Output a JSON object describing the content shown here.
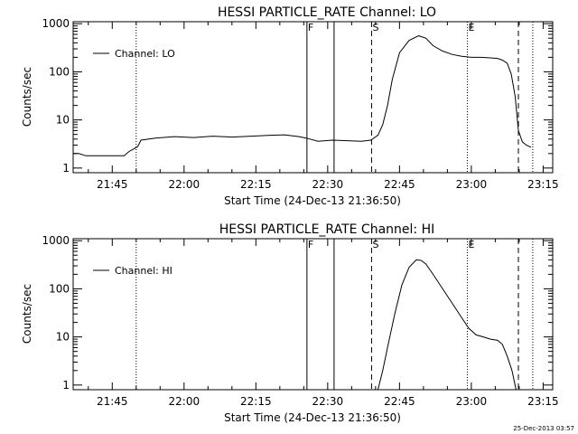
{
  "footer": {
    "timestamp": "25-Dec-2013 03:57"
  },
  "chart_data": [
    {
      "type": "line",
      "title": "HESSI PARTICLE_RATE Channel: LO",
      "xlabel": "Start Time (24-Dec-13 21:36:50)",
      "ylabel": "Counts/sec",
      "yscale": "log",
      "ylim": [
        0.8,
        1100
      ],
      "xlim": [
        "21:36:50",
        "23:17:00"
      ],
      "xticks": [
        "21:45",
        "22:00",
        "22:15",
        "22:30",
        "22:45",
        "23:00",
        "23:15"
      ],
      "yticks": [
        "1",
        "10",
        "100",
        "1000"
      ],
      "grid": false,
      "legend": {
        "position": "top-left",
        "entries": [
          "Channel: LO"
        ]
      },
      "markers": [
        {
          "label": "",
          "time": "21:50:00",
          "style": "dotted"
        },
        {
          "label": "F",
          "time": "22:25:40",
          "style": "solid"
        },
        {
          "label": "",
          "time": "22:31:20",
          "style": "solid"
        },
        {
          "label": "S",
          "time": "22:39:10",
          "style": "dashed"
        },
        {
          "label": "E",
          "time": "22:59:10",
          "style": "dotted"
        },
        {
          "label": "",
          "time": "23:09:50",
          "style": "dashed"
        },
        {
          "label": "",
          "time": "23:12:50",
          "style": "dotted"
        }
      ],
      "series": [
        {
          "name": "Channel: LO",
          "x": [
            "21:36:50",
            "21:38:00",
            "21:39:30",
            "21:40:30",
            "21:42:00",
            "21:43:30",
            "21:44:30",
            "21:46:00",
            "21:47:30",
            "21:48:30",
            "21:49:30",
            "21:50:20",
            "21:51:00",
            "21:54:00",
            "21:58:00",
            "22:02:00",
            "22:06:00",
            "22:10:00",
            "22:14:00",
            "22:18:00",
            "22:21:00",
            "22:24:00",
            "22:25:30",
            "22:28:00",
            "22:31:00",
            "22:34:00",
            "22:37:00",
            "22:39:00",
            "22:40:30",
            "22:41:30",
            "22:42:30",
            "22:43:30",
            "22:45:00",
            "22:47:00",
            "22:49:00",
            "22:50:30",
            "22:52:00",
            "22:54:00",
            "22:56:00",
            "22:58:00",
            "23:00:00",
            "23:02:00",
            "23:04:00",
            "23:05:30",
            "23:06:30",
            "23:07:30",
            "23:08:20",
            "23:09:10",
            "23:09:50",
            "23:10:40",
            "23:11:30",
            "23:12:30"
          ],
          "y": [
            2.0,
            2.0,
            1.8,
            1.8,
            1.8,
            1.8,
            1.8,
            1.8,
            1.8,
            2.2,
            2.5,
            2.8,
            3.8,
            4.2,
            4.5,
            4.3,
            4.6,
            4.4,
            4.6,
            4.8,
            4.9,
            4.5,
            4.2,
            3.6,
            3.8,
            3.7,
            3.6,
            3.8,
            4.8,
            8,
            20,
            70,
            250,
            450,
            560,
            500,
            350,
            270,
            230,
            210,
            200,
            200,
            195,
            190,
            175,
            150,
            90,
            30,
            6,
            3.5,
            3.0,
            2.7
          ]
        }
      ]
    },
    {
      "type": "line",
      "title": "HESSI PARTICLE_RATE Channel: HI",
      "xlabel": "Start Time (24-Dec-13 21:36:50)",
      "ylabel": "Counts/sec",
      "yscale": "log",
      "ylim": [
        0.8,
        1100
      ],
      "xlim": [
        "21:36:50",
        "23:17:00"
      ],
      "xticks": [
        "21:45",
        "22:00",
        "22:15",
        "22:30",
        "22:45",
        "23:00",
        "23:15"
      ],
      "yticks": [
        "1",
        "10",
        "100",
        "1000"
      ],
      "grid": false,
      "legend": {
        "position": "top-left",
        "entries": [
          "Channel: HI"
        ]
      },
      "markers": [
        {
          "label": "",
          "time": "21:50:00",
          "style": "dotted"
        },
        {
          "label": "F",
          "time": "22:25:40",
          "style": "solid"
        },
        {
          "label": "",
          "time": "22:31:20",
          "style": "solid"
        },
        {
          "label": "S",
          "time": "22:39:10",
          "style": "dashed"
        },
        {
          "label": "E",
          "time": "22:59:10",
          "style": "dotted"
        },
        {
          "label": "",
          "time": "23:09:50",
          "style": "dashed"
        },
        {
          "label": "",
          "time": "23:12:50",
          "style": "dotted"
        }
      ],
      "series": [
        {
          "name": "Channel: HI",
          "x": [
            "22:40:30",
            "22:41:30",
            "22:42:30",
            "22:44:00",
            "22:45:30",
            "22:47:00",
            "22:48:30",
            "22:49:30",
            "22:50:30",
            "22:52:00",
            "22:54:00",
            "22:56:00",
            "22:58:00",
            "22:59:30",
            "23:01:00",
            "23:02:30",
            "23:04:00",
            "23:05:30",
            "23:06:30",
            "23:07:30",
            "23:08:30",
            "23:09:20"
          ],
          "y": [
            0.8,
            2,
            6,
            30,
            120,
            280,
            400,
            390,
            330,
            200,
            100,
            50,
            25,
            15,
            11,
            10,
            9,
            8.5,
            7,
            4,
            2,
            0.8
          ]
        }
      ]
    }
  ]
}
